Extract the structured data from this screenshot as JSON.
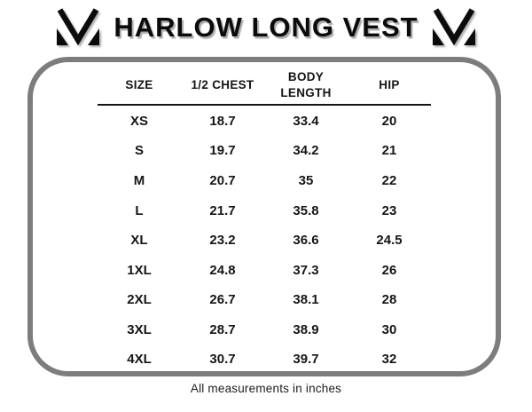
{
  "header": {
    "title": "HARLOW LONG VEST",
    "logo_name": "brand-m-logo"
  },
  "table": {
    "headers": [
      "SIZE",
      "1/2 CHEST",
      "BODY LENGTH",
      "HIP"
    ],
    "rows": [
      [
        "XS",
        "18.7",
        "33.4",
        "20"
      ],
      [
        "S",
        "19.7",
        "34.2",
        "21"
      ],
      [
        "M",
        "20.7",
        "35",
        "22"
      ],
      [
        "L",
        "21.7",
        "35.8",
        "23"
      ],
      [
        "XL",
        "23.2",
        "36.6",
        "24.5"
      ],
      [
        "1XL",
        "24.8",
        "37.3",
        "26"
      ],
      [
        "2XL",
        "26.7",
        "38.1",
        "28"
      ],
      [
        "3XL",
        "28.7",
        "38.9",
        "30"
      ],
      [
        "4XL",
        "30.7",
        "39.7",
        "32"
      ]
    ]
  },
  "footer": {
    "note": "All measurements in inches"
  },
  "colors": {
    "border_gray": "#7d7d7d",
    "text_black": "#121212",
    "background": "#ffffff"
  },
  "chart_data": {
    "type": "table",
    "title": "HARLOW LONG VEST",
    "columns": [
      "SIZE",
      "1/2 CHEST",
      "BODY LENGTH",
      "HIP"
    ],
    "rows": [
      [
        "XS",
        18.7,
        33.4,
        20
      ],
      [
        "S",
        19.7,
        34.2,
        21
      ],
      [
        "M",
        20.7,
        35,
        22
      ],
      [
        "L",
        21.7,
        35.8,
        23
      ],
      [
        "XL",
        23.2,
        36.6,
        24.5
      ],
      [
        "1XL",
        24.8,
        37.3,
        26
      ],
      [
        "2XL",
        26.7,
        38.1,
        28
      ],
      [
        "3XL",
        28.7,
        38.9,
        30
      ],
      [
        "4XL",
        30.7,
        39.7,
        32
      ]
    ],
    "units": "inches",
    "footnote": "All measurements in inches"
  }
}
